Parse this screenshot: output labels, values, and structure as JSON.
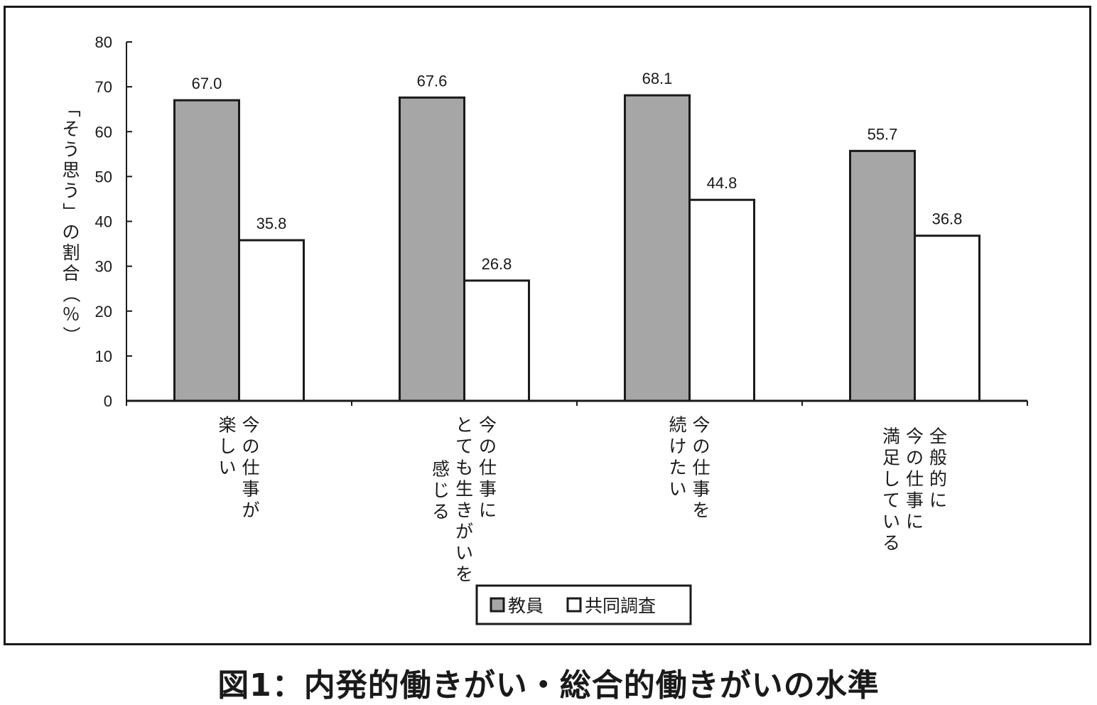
{
  "caption": "図1：内発的働きがい・総合的働きがいの水準",
  "chart_data": {
    "type": "bar",
    "categories": [
      [
        "今の仕事が",
        "楽しい"
      ],
      [
        "今の仕事に",
        "とても生きがいを",
        "感じる"
      ],
      [
        "今の仕事を",
        "続けたい"
      ],
      [
        "全般的に",
        "今の仕事に",
        "満足している"
      ]
    ],
    "series": [
      {
        "name": "教員",
        "values": [
          67.0,
          67.6,
          68.1,
          55.7
        ],
        "labels": [
          "67.0",
          "67.6",
          "68.1",
          "55.7"
        ],
        "color": "#a6a6a6"
      },
      {
        "name": "共同調査",
        "values": [
          35.8,
          26.8,
          44.8,
          36.8
        ],
        "labels": [
          "35.8",
          "26.8",
          "44.8",
          "36.8"
        ],
        "color": "#ffffff"
      }
    ],
    "ylabel": "「そう思う」の割合（％）",
    "ylim": [
      0,
      80
    ],
    "yticks": [
      0,
      10,
      20,
      30,
      40,
      50,
      60,
      70,
      80
    ],
    "grid": false,
    "legend_position": "bottom-center"
  }
}
